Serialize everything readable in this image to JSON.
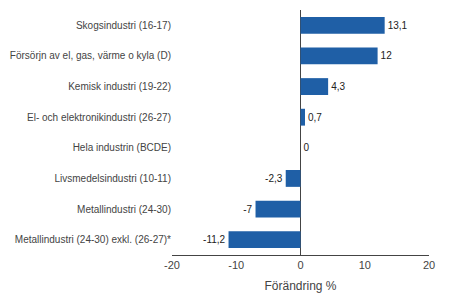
{
  "chart_data": {
    "type": "bar",
    "orientation": "horizontal",
    "categories": [
      "Metallindustri (24-30) exkl. (26-27)*",
      "Metallindustri (24-30)",
      "Livsmedelsindustri (10-11)",
      "Hela industrin (BCDE)",
      "El- och elektronikindustri (26-27)",
      "Kemisk industri (19-22)",
      "Försörjn av el, gas, värme o kyla (D)",
      "Skogsindustri (16-17)"
    ],
    "values": [
      -11.2,
      -7.0,
      -2.3,
      0.0,
      0.7,
      4.3,
      12.0,
      13.1
    ],
    "value_labels": [
      "-11,2",
      "-7",
      "-2,3",
      "0",
      "0,7",
      "4,3",
      "12",
      "13,1"
    ],
    "data_labels": true,
    "color": "#1F5FA6",
    "xlabel": "Förändring %",
    "xlim": [
      -20,
      20
    ],
    "xticks": [
      -20,
      -10,
      0,
      10,
      20
    ],
    "grid": false
  }
}
